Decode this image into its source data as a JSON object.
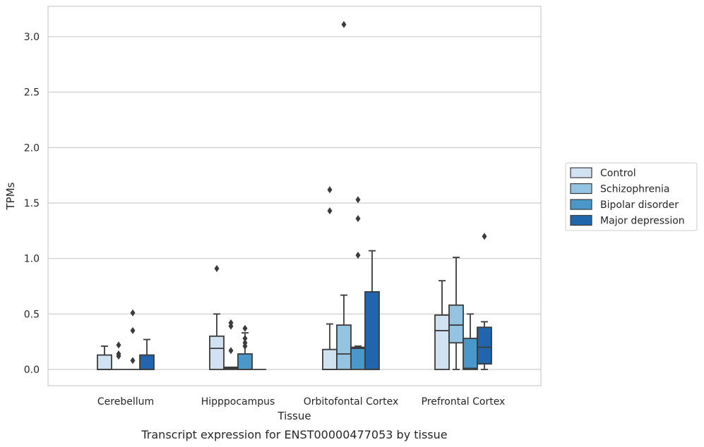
{
  "chart_data": {
    "type": "box",
    "xlabel": "Tissue",
    "ylabel": "TPMs",
    "caption": "Transcript expression for ENST00000477053 by tissue",
    "ylim": [
      -0.15,
      3.27
    ],
    "yticks": [
      "0.0",
      "0.5",
      "1.0",
      "1.5",
      "2.0",
      "2.5",
      "3.0"
    ],
    "grid": "horizontal",
    "legend_position": "right",
    "categories": [
      "Cerebellum",
      "Hipppocampus",
      "Orbitofontal Cortex",
      "Prefrontal Cortex"
    ],
    "series": [
      {
        "name": "Control",
        "color": "#d0e1f2",
        "boxes": [
          {
            "q1": 0.0,
            "median": 0.0,
            "q3": 0.13,
            "whislo": 0.0,
            "whishi": 0.21,
            "fliers": []
          },
          {
            "q1": 0.0,
            "median": 0.19,
            "q3": 0.3,
            "whislo": 0.0,
            "whishi": 0.5,
            "fliers": [
              0.91
            ]
          },
          {
            "q1": 0.0,
            "median": 0.0,
            "q3": 0.18,
            "whislo": 0.0,
            "whishi": 0.41,
            "fliers": [
              1.43,
              1.62
            ]
          },
          {
            "q1": 0.0,
            "median": 0.35,
            "q3": 0.49,
            "whislo": 0.0,
            "whishi": 0.8,
            "fliers": []
          }
        ]
      },
      {
        "name": "Schizophrenia",
        "color": "#94c4df",
        "boxes": [
          {
            "q1": 0.0,
            "median": 0.0,
            "q3": 0.0,
            "whislo": 0.0,
            "whishi": 0.0,
            "fliers": [
              0.12,
              0.14,
              0.22
            ]
          },
          {
            "q1": 0.0,
            "median": 0.01,
            "q3": 0.02,
            "whislo": 0.0,
            "whishi": 0.02,
            "fliers": [
              0.17,
              0.39,
              0.42
            ]
          },
          {
            "q1": 0.0,
            "median": 0.14,
            "q3": 0.4,
            "whislo": 0.0,
            "whishi": 0.67,
            "fliers": [
              3.11
            ]
          },
          {
            "q1": 0.24,
            "median": 0.4,
            "q3": 0.58,
            "whislo": 0.0,
            "whishi": 1.01,
            "fliers": []
          }
        ]
      },
      {
        "name": "Bipolar disorder",
        "color": "#4a98c9",
        "boxes": [
          {
            "q1": 0.0,
            "median": 0.0,
            "q3": 0.0,
            "whislo": 0.0,
            "whishi": 0.0,
            "fliers": [
              0.08,
              0.35,
              0.51
            ]
          },
          {
            "q1": 0.0,
            "median": 0.0,
            "q3": 0.14,
            "whislo": 0.0,
            "whishi": 0.33,
            "fliers": [
              0.21,
              0.24,
              0.28,
              0.37
            ]
          },
          {
            "q1": 0.0,
            "median": 0.19,
            "q3": 0.2,
            "whislo": 0.0,
            "whishi": 0.21,
            "fliers": [
              1.03,
              1.36,
              1.53
            ]
          },
          {
            "q1": 0.0,
            "median": 0.01,
            "q3": 0.28,
            "whislo": 0.0,
            "whishi": 0.5,
            "fliers": []
          }
        ]
      },
      {
        "name": "Major depression",
        "color": "#2166ac",
        "boxes": [
          {
            "q1": 0.0,
            "median": 0.0,
            "q3": 0.13,
            "whislo": 0.0,
            "whishi": 0.27,
            "fliers": []
          },
          {
            "q1": 0.0,
            "median": 0.0,
            "q3": 0.0,
            "whislo": 0.0,
            "whishi": 0.0,
            "fliers": []
          },
          {
            "q1": 0.0,
            "median": 0.0,
            "q3": 0.7,
            "whislo": 0.0,
            "whishi": 1.07,
            "fliers": []
          },
          {
            "q1": 0.05,
            "median": 0.2,
            "q3": 0.38,
            "whislo": 0.0,
            "whishi": 0.43,
            "fliers": [
              1.2
            ]
          }
        ]
      }
    ]
  }
}
